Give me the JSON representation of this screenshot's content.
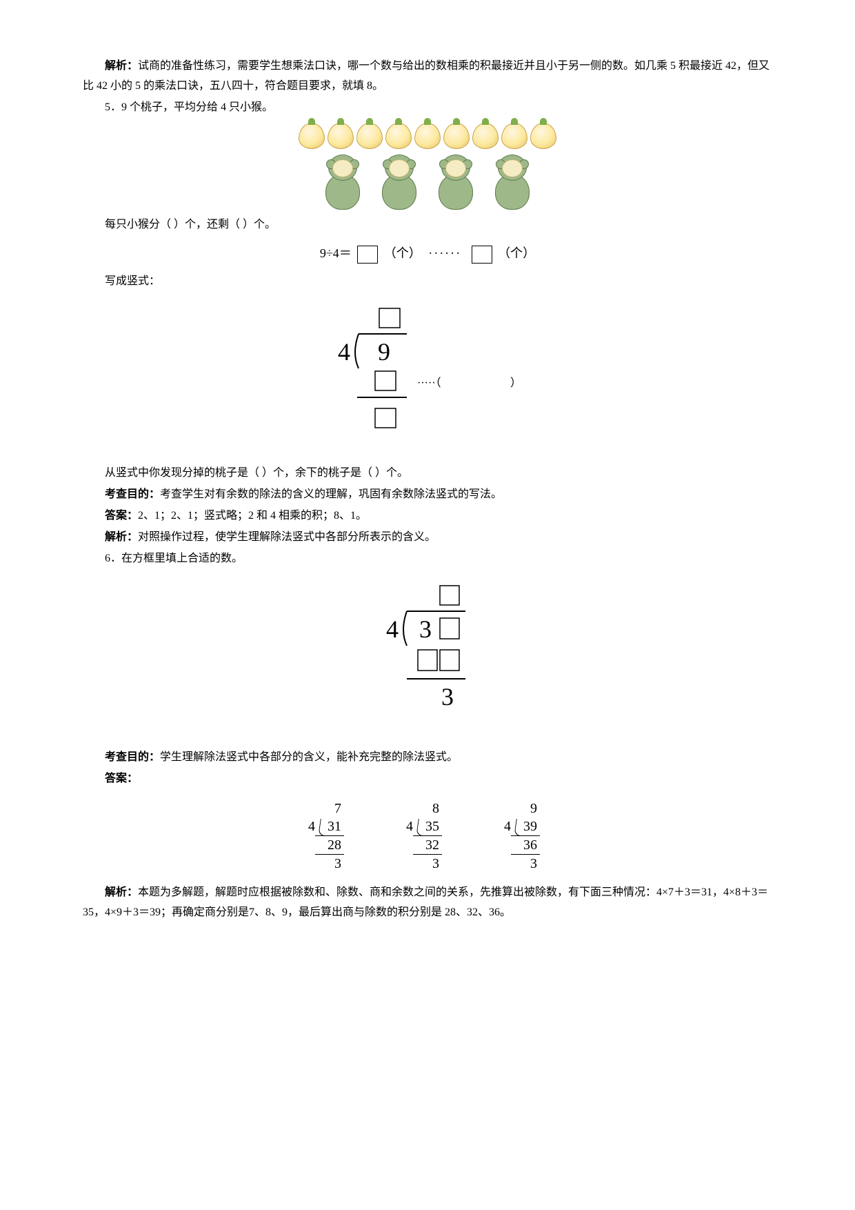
{
  "p1": {
    "label": "解析：",
    "text": "试商的准备性练习，需要学生想乘法口诀，哪一个数与给出的数相乘的积最接近并且小于另一侧的数。如几乘 5 积最接近 42，但又比 42 小的 5 的乘法口诀，五八四十，符合题目要求，就填 8。"
  },
  "q5": {
    "num": "5．",
    "text": "9 个桃子，平均分给 4 只小猴。",
    "peach_count": 9,
    "monkey_count": 4,
    "line1": "每只小猴分（ ）个，还剩（ ）个。",
    "eq_left": "9÷4＝",
    "unit": "（个）",
    "dots": "······",
    "line_vert": "写成竖式：",
    "vert": {
      "divisor": "4",
      "dividend": "9",
      "paren_dots": "·····（",
      "paren_close": "）"
    },
    "line_find": "从竖式中你发现分掉的桃子是（ ）个，余下的桃子是（ ）个。"
  },
  "q5_goal": {
    "label": "考查目的：",
    "text": "考查学生对有余数的除法的含义的理解，巩固有余数除法竖式的写法。"
  },
  "q5_ans": {
    "label": "答案：",
    "text": "2、1；2、1；竖式略；2 和 4 相乘的积；8、1。"
  },
  "q5_exp": {
    "label": "解析：",
    "text": "对照操作过程，使学生理解除法竖式中各部分所表示的含义。"
  },
  "q6": {
    "num": "6．",
    "text": "在方框里填上合适的数。",
    "vert": {
      "divisor": "4",
      "dividend_tens": "3",
      "remainder": "3"
    }
  },
  "q6_goal": {
    "label": "考查目的：",
    "text": "学生理解除法竖式中各部分的含义，能补充完整的除法竖式。"
  },
  "q6_ans_label": "答案：",
  "answers": [
    {
      "quot": "7",
      "divisor": "4",
      "dividend": "31",
      "sub": "28",
      "rem": "3"
    },
    {
      "quot": "8",
      "divisor": "4",
      "dividend": "35",
      "sub": "32",
      "rem": "3"
    },
    {
      "quot": "9",
      "divisor": "4",
      "dividend": "39",
      "sub": "36",
      "rem": "3"
    }
  ],
  "q6_exp": {
    "label": "解析：",
    "text": "本题为多解题，解题时应根据被除数和、除数、商和余数之间的关系，先推算出被除数，有下面三种情况：4×7＋3＝31，4×8＋3＝35，4×9＋3＝39；再确定商分别是7、8、9，最后算出商与除数的积分别是 28、32、36。"
  }
}
